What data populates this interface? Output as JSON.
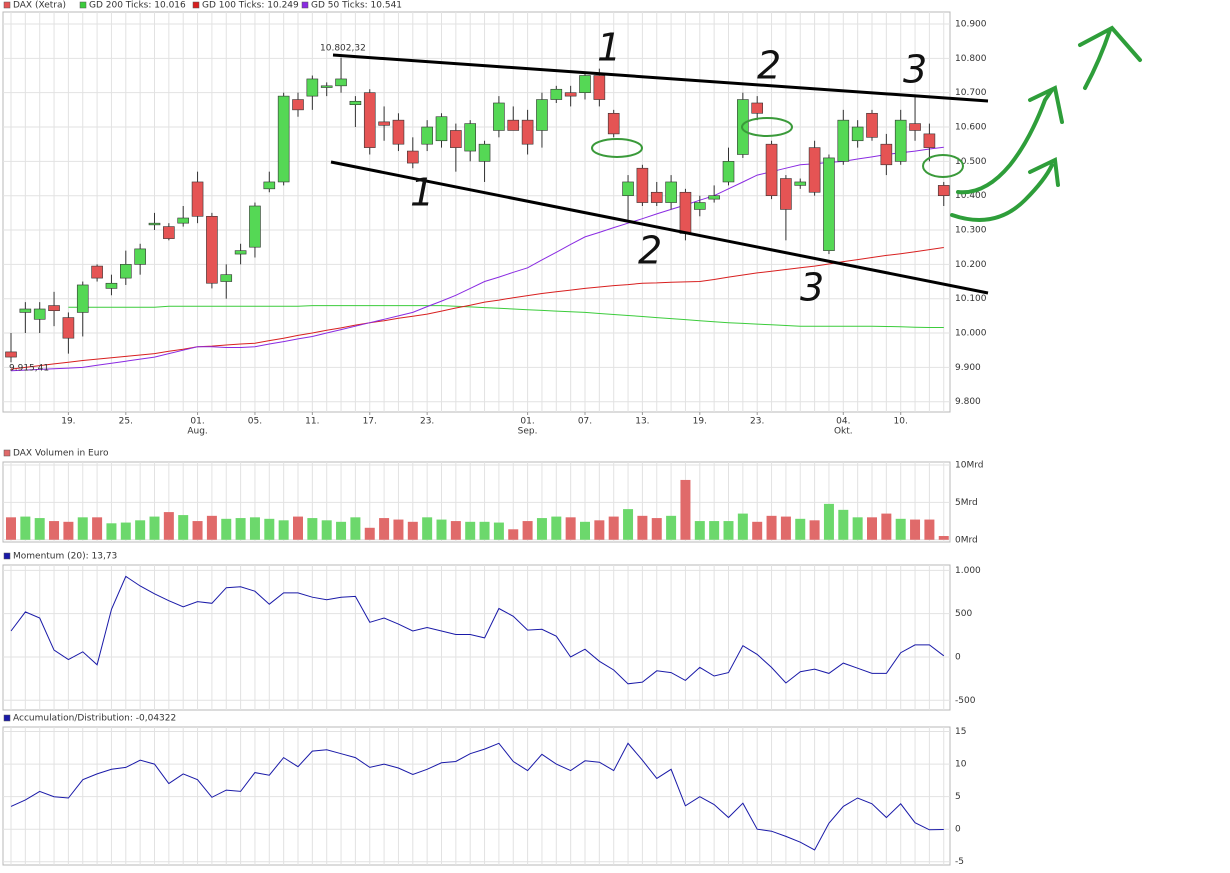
{
  "chart_data": [
    {
      "type": "candlestick",
      "name": "DAX (Xetra)",
      "up_color": "#55d855",
      "down_color": "#e55454",
      "grid": true,
      "categories": [
        null,
        null,
        null,
        null,
        "19.",
        null,
        null,
        null,
        "25.",
        null,
        null,
        null,
        null,
        "01.",
        null,
        null,
        null,
        "05.",
        null,
        null,
        null,
        "11.",
        null,
        null,
        null,
        "17.",
        null,
        null,
        null,
        "23.",
        null,
        null,
        null,
        null,
        null,
        null,
        "01.",
        null,
        null,
        null,
        "07.",
        null,
        null,
        null,
        "13.",
        null,
        null,
        null,
        "19.",
        null,
        null,
        null,
        "23.",
        null,
        null,
        null,
        null,
        null,
        "04.",
        null,
        null,
        null,
        "10.",
        null,
        null,
        null
      ],
      "categories2": [
        null,
        null,
        null,
        null,
        null,
        null,
        null,
        null,
        null,
        null,
        null,
        null,
        null,
        "Aug.",
        null,
        null,
        null,
        null,
        null,
        null,
        null,
        null,
        null,
        null,
        null,
        null,
        null,
        null,
        null,
        null,
        null,
        null,
        null,
        null,
        null,
        null,
        "Sep.",
        null,
        null,
        null,
        null,
        null,
        null,
        null,
        null,
        null,
        null,
        null,
        null,
        null,
        null,
        null,
        null,
        null,
        null,
        null,
        null,
        null,
        "Okt.",
        null,
        null,
        null,
        null,
        null,
        null,
        null
      ],
      "open": [
        9945,
        10060,
        10040,
        10080,
        10045,
        10060,
        10195,
        10130,
        10160,
        10200,
        10315,
        10310,
        10320,
        10440,
        10340,
        10150,
        10230,
        10250,
        10420,
        10440,
        10680,
        10690,
        10715,
        10720,
        10665,
        10700,
        10615,
        10620,
        10530,
        10550,
        10560,
        10590,
        10530,
        10500,
        10590,
        10620,
        10620,
        10590,
        10680,
        10700,
        10700,
        10750,
        10640,
        10400,
        10480,
        10410,
        10380,
        10410,
        10360,
        10390,
        10440,
        10520,
        10670,
        10550,
        10450,
        10430,
        10540,
        10240,
        10500,
        10560,
        10640,
        10550,
        10500,
        10610,
        10580,
        10430
      ],
      "high": [
        10000,
        10090,
        10090,
        10120,
        10060,
        10150,
        10200,
        10170,
        10240,
        10260,
        10350,
        10320,
        10370,
        10470,
        10350,
        10200,
        10260,
        10380,
        10470,
        10700,
        10700,
        10750,
        10730,
        10802,
        10690,
        10710,
        10660,
        10640,
        10570,
        10620,
        10640,
        10610,
        10620,
        10560,
        10690,
        10660,
        10650,
        10700,
        10720,
        10720,
        10760,
        10770,
        10650,
        10460,
        10490,
        10440,
        10460,
        10420,
        10400,
        10430,
        10540,
        10700,
        10690,
        10560,
        10460,
        10450,
        10560,
        10520,
        10650,
        10620,
        10650,
        10580,
        10650,
        10690,
        10610,
        10440
      ],
      "low": [
        9915,
        10000,
        10000,
        10020,
        9940,
        9990,
        10150,
        10110,
        10140,
        10170,
        10300,
        10270,
        10310,
        10320,
        10130,
        10100,
        10200,
        10220,
        10410,
        10430,
        10630,
        10650,
        10690,
        10700,
        10600,
        10520,
        10560,
        10530,
        10480,
        10530,
        10540,
        10470,
        10500,
        10440,
        10570,
        10590,
        10520,
        10540,
        10670,
        10660,
        10680,
        10660,
        10570,
        10330,
        10370,
        10370,
        10360,
        10270,
        10340,
        10380,
        10430,
        10510,
        10620,
        10390,
        10270,
        10420,
        10400,
        10230,
        10490,
        10540,
        10560,
        10460,
        10490,
        10560,
        10500,
        10370
      ],
      "close": [
        9930,
        10070,
        10070,
        10065,
        9985,
        10140,
        10160,
        10145,
        10200,
        10245,
        10320,
        10275,
        10335,
        10340,
        10145,
        10170,
        10240,
        10370,
        10440,
        10690,
        10650,
        10740,
        10720,
        10740,
        10675,
        10540,
        10605,
        10550,
        10495,
        10600,
        10630,
        10540,
        10610,
        10550,
        10670,
        10590,
        10550,
        10680,
        10710,
        10690,
        10750,
        10680,
        10580,
        10440,
        10380,
        10380,
        10440,
        10290,
        10380,
        10400,
        10500,
        10680,
        10640,
        10400,
        10360,
        10440,
        10410,
        10510,
        10620,
        10600,
        10570,
        10490,
        10620,
        10590,
        10540,
        10400
      ],
      "series": [
        {
          "name": "GD 200 Ticks: 10.016",
          "color": "#3ccc3c",
          "values": [
            null,
            null,
            null,
            null,
            10075,
            10075,
            10075,
            10075,
            10075,
            10075,
            10075,
            10078,
            10078,
            10078,
            10078,
            10078,
            10078,
            10078,
            10078,
            10078,
            10078,
            10080,
            10080,
            10080,
            10080,
            10080,
            10080,
            10080,
            10080,
            10080,
            10080,
            10078,
            10076,
            10074,
            10072,
            10070,
            10068,
            10066,
            10064,
            10062,
            10060,
            10057,
            10054,
            10051,
            10048,
            10045,
            10042,
            10039,
            10036,
            10033,
            10030,
            10028,
            10026,
            10024,
            10022,
            10020,
            10020,
            10020,
            10020,
            10020,
            10020,
            10019,
            10018,
            10017,
            10016,
            10016
          ]
        },
        {
          "name": "GD 100 Ticks: 10.249",
          "color": "#d82020",
          "values": [
            9895,
            9900,
            9905,
            9910,
            9915,
            9920,
            9924,
            9928,
            9932,
            9936,
            9940,
            9947,
            9953,
            9960,
            9962,
            9965,
            9968,
            9970,
            9978,
            9985,
            9993,
            10000,
            10008,
            10015,
            10023,
            10030,
            10036,
            10043,
            10049,
            10055,
            10064,
            10073,
            10081,
            10090,
            10096,
            10103,
            10109,
            10115,
            10120,
            10125,
            10130,
            10134,
            10138,
            10141,
            10145,
            10146,
            10148,
            10149,
            10150,
            10156,
            10163,
            10169,
            10175,
            10180,
            10185,
            10190,
            10195,
            10201,
            10208,
            10214,
            10220,
            10226,
            10231,
            10237,
            10243,
            10249
          ]
        },
        {
          "name": "GD 50 Ticks: 10.541",
          "color": "#8a2be2",
          "values": [
            9890,
            9892,
            9894,
            9896,
            9898,
            9900,
            9906,
            9912,
            9918,
            9924,
            9930,
            9940,
            9950,
            9960,
            9960,
            9958,
            9958,
            9960,
            9968,
            9975,
            9983,
            9990,
            10000,
            10010,
            10020,
            10030,
            10040,
            10050,
            10060,
            10077,
            10093,
            10110,
            10130,
            10150,
            10163,
            10177,
            10190,
            10213,
            10235,
            10258,
            10280,
            10293,
            10307,
            10320,
            10333,
            10347,
            10360,
            10373,
            10387,
            10400,
            10420,
            10440,
            10460,
            10470,
            10480,
            10490,
            10493,
            10497,
            10500,
            10507,
            10513,
            10520,
            10525,
            10530,
            10536,
            10541
          ]
        }
      ],
      "high_label": "10.802,32",
      "low_label": "9.915,41",
      "annotations": [
        "1",
        "2",
        "3",
        "1",
        "2",
        "3"
      ],
      "ylim": [
        9770,
        10935
      ],
      "yticks": [
        {
          "value": 9800,
          "label": "9.800"
        },
        {
          "value": 9900,
          "label": "9.900"
        },
        {
          "value": 10000,
          "label": "10.000"
        },
        {
          "value": 10100,
          "label": "10.100"
        },
        {
          "value": 10200,
          "label": "10.200"
        },
        {
          "value": 10300,
          "label": "10.300"
        },
        {
          "value": 10400,
          "label": "10.400"
        },
        {
          "value": 10500,
          "label": "10.500"
        },
        {
          "value": 10600,
          "label": "10.600"
        },
        {
          "value": 10700,
          "label": "10.700"
        },
        {
          "value": 10800,
          "label": "10.800"
        },
        {
          "value": 10900,
          "label": "10.900"
        }
      ]
    },
    {
      "type": "bar",
      "title": "DAX Volumen in Euro",
      "up_color": "#6cd86c",
      "down_color": "#e06a6a",
      "grid": true,
      "values": [
        3.0,
        3.1,
        2.9,
        2.5,
        2.4,
        3.0,
        3.0,
        2.2,
        2.3,
        2.6,
        3.1,
        3.7,
        3.3,
        2.5,
        3.2,
        2.8,
        2.9,
        3.0,
        2.8,
        2.6,
        3.1,
        2.9,
        2.6,
        2.4,
        3.0,
        1.6,
        2.9,
        2.7,
        2.4,
        3.0,
        2.7,
        2.5,
        2.4,
        2.4,
        2.3,
        1.4,
        2.5,
        2.9,
        3.1,
        3.0,
        2.4,
        2.6,
        3.1,
        4.1,
        3.2,
        2.9,
        3.2,
        8.0,
        2.5,
        2.5,
        2.5,
        3.5,
        2.4,
        3.2,
        3.1,
        2.8,
        2.6,
        4.8,
        4.0,
        3.0,
        3.0,
        3.5,
        2.8,
        2.7,
        2.7,
        0.5
      ],
      "ylim": [
        -0.3,
        10.4
      ],
      "yticks": [
        {
          "value": 0,
          "label": "0Mrd"
        },
        {
          "value": 5,
          "label": "5Mrd"
        },
        {
          "value": 10,
          "label": "10Mrd"
        }
      ]
    },
    {
      "type": "line",
      "title": "Momentum (20): 13,73",
      "color": "#1a1aa8",
      "grid": true,
      "values": [
        300,
        520,
        450,
        80,
        -30,
        60,
        -90,
        550,
        930,
        820,
        730,
        650,
        580,
        640,
        620,
        800,
        810,
        760,
        610,
        740,
        740,
        690,
        660,
        690,
        700,
        400,
        450,
        380,
        300,
        340,
        300,
        260,
        260,
        220,
        560,
        470,
        310,
        320,
        240,
        0,
        90,
        -50,
        -150,
        -310,
        -290,
        -160,
        -180,
        -270,
        -120,
        -220,
        -180,
        130,
        30,
        -120,
        -300,
        -170,
        -140,
        -190,
        -70,
        -130,
        -190,
        -190,
        50,
        140,
        140,
        13.73
      ],
      "ylim": [
        -612,
        1062
      ],
      "yticks": [
        {
          "value": -500,
          "label": "-500"
        },
        0,
        500,
        {
          "value": 1000,
          "label": "1.000"
        }
      ]
    },
    {
      "type": "line",
      "title": "Accumulation/Distribution: -0,04322",
      "color": "#1a1aa8",
      "grid": true,
      "values": [
        3.5,
        4.5,
        5.8,
        5.0,
        4.8,
        7.6,
        8.5,
        9.2,
        9.5,
        10.6,
        10.0,
        7.0,
        8.5,
        7.6,
        4.9,
        6.0,
        5.8,
        8.7,
        8.3,
        11.0,
        9.6,
        12.0,
        12.2,
        11.6,
        11.0,
        9.5,
        10.0,
        9.4,
        8.4,
        9.2,
        10.2,
        10.4,
        11.6,
        12.3,
        13.2,
        10.4,
        9.0,
        11.5,
        10.0,
        9.0,
        10.5,
        10.3,
        9.0,
        13.2,
        10.6,
        7.8,
        9.2,
        3.6,
        5.0,
        3.8,
        1.8,
        4.0,
        0.0,
        -0.3,
        -1.1,
        -2.0,
        -3.2,
        0.9,
        3.5,
        4.8,
        3.9,
        1.8,
        3.9,
        1.0,
        -0.1,
        -0.04322
      ],
      "ylim": [
        -5.5,
        15.7
      ],
      "yticks": [
        -5,
        0,
        5,
        10,
        15
      ]
    }
  ]
}
